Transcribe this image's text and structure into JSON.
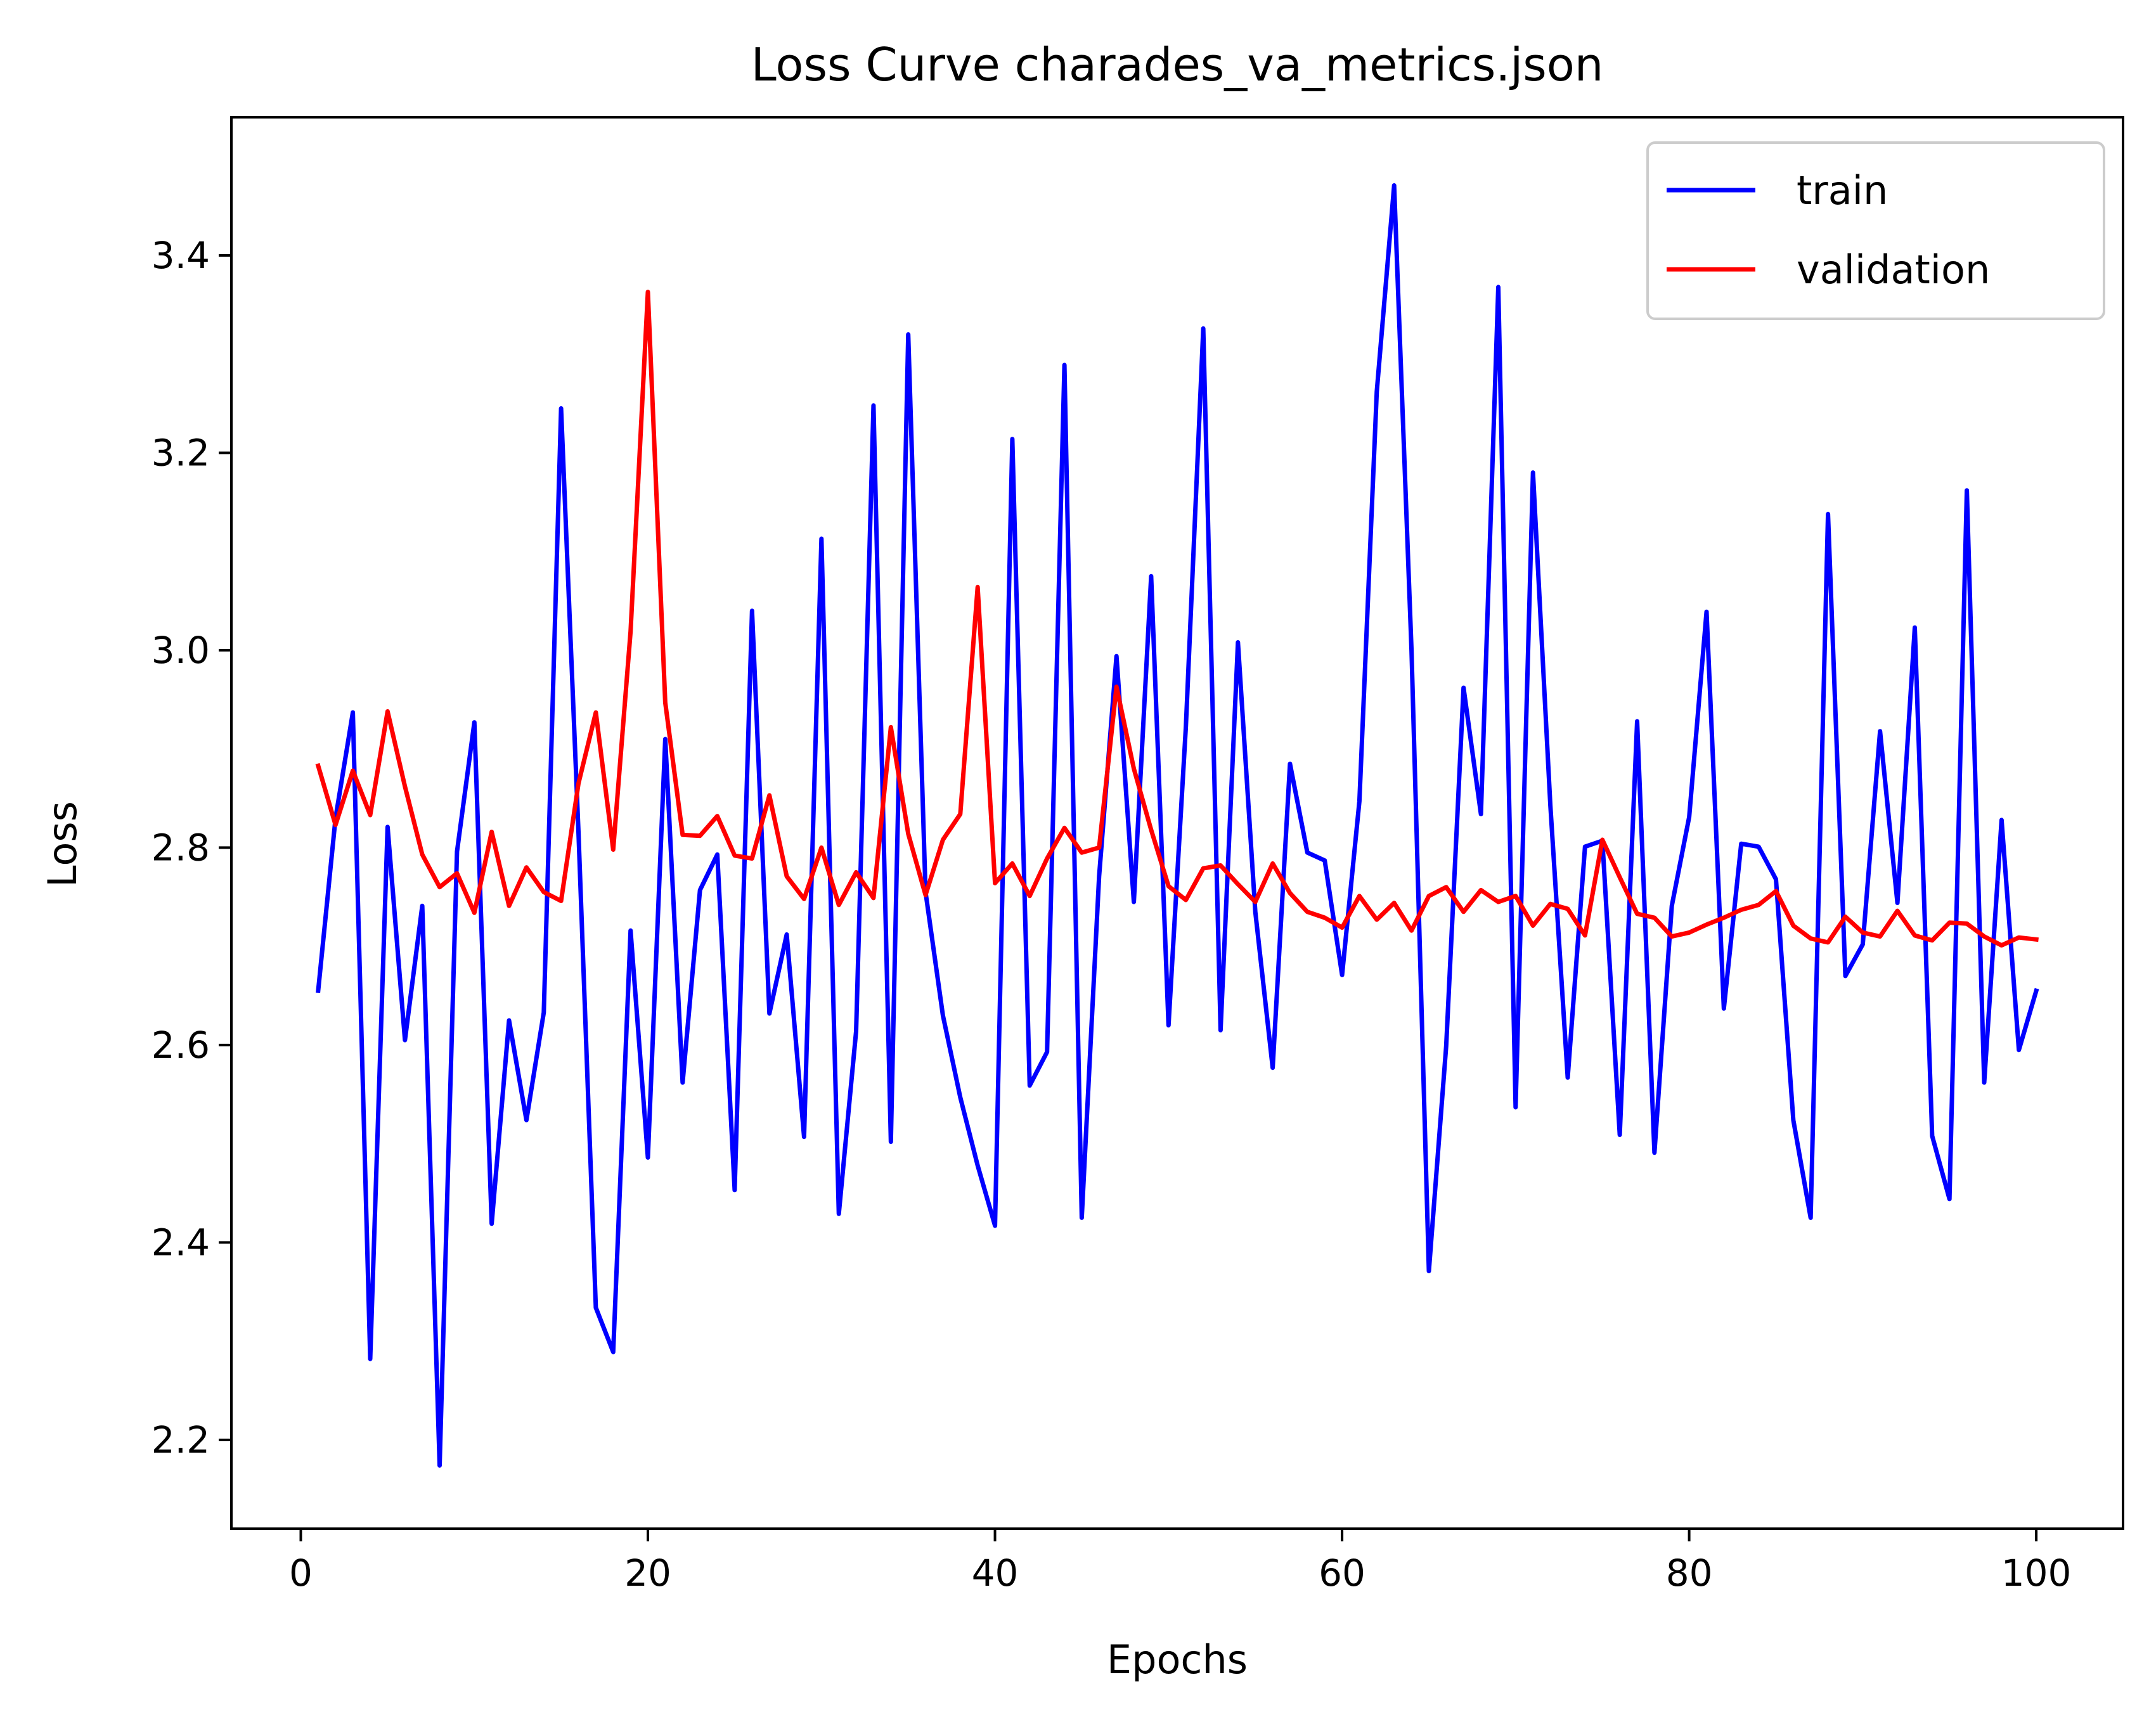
{
  "chart_data": {
    "type": "line",
    "title": "Loss Curve charades_va_metrics.json",
    "xlabel": "Epochs",
    "ylabel": "Loss",
    "xlim": [
      -4,
      105
    ],
    "ylim": [
      2.11,
      3.54
    ],
    "xticks": [
      0,
      20,
      40,
      60,
      80,
      100
    ],
    "yticks": [
      2.2,
      2.4,
      2.6,
      2.8,
      3.0,
      3.2,
      3.4
    ],
    "grid": false,
    "legend": "top-right",
    "x": [
      1,
      2,
      3,
      4,
      5,
      6,
      7,
      8,
      9,
      10,
      11,
      12,
      13,
      14,
      15,
      16,
      17,
      18,
      19,
      20,
      21,
      22,
      23,
      24,
      25,
      26,
      27,
      28,
      29,
      30,
      31,
      32,
      33,
      34,
      35,
      36,
      37,
      38,
      39,
      40,
      41,
      42,
      43,
      44,
      45,
      46,
      47,
      48,
      49,
      50,
      51,
      52,
      53,
      54,
      55,
      56,
      57,
      58,
      59,
      60,
      61,
      62,
      63,
      64,
      65,
      66,
      67,
      68,
      69,
      70,
      71,
      72,
      73,
      74,
      75,
      76,
      77,
      78,
      79,
      80,
      81,
      82,
      83,
      84,
      85,
      86,
      87,
      88,
      89,
      90,
      91,
      92,
      93,
      94,
      95,
      96,
      97,
      98,
      99,
      100
    ],
    "series": [
      {
        "name": "train",
        "color": "#0000ff",
        "values": [
          2.655,
          2.83,
          2.937,
          2.282,
          2.821,
          2.605,
          2.741,
          2.174,
          2.796,
          2.927,
          2.419,
          2.625,
          2.524,
          2.633,
          3.245,
          2.816,
          2.334,
          2.289,
          2.716,
          2.486,
          2.91,
          2.562,
          2.757,
          2.793,
          2.453,
          3.04,
          2.632,
          2.712,
          2.507,
          3.113,
          2.429,
          2.614,
          3.248,
          2.502,
          3.32,
          2.755,
          2.63,
          2.547,
          2.478,
          2.417,
          3.214,
          2.559,
          2.593,
          3.289,
          2.425,
          2.771,
          2.994,
          2.745,
          3.075,
          2.62,
          2.923,
          3.326,
          2.615,
          3.008,
          2.735,
          2.577,
          2.885,
          2.795,
          2.787,
          2.671,
          2.847,
          3.262,
          3.471,
          3.0,
          2.371,
          2.599,
          2.962,
          2.834,
          3.368,
          2.537,
          3.18,
          2.843,
          2.567,
          2.801,
          2.807,
          2.509,
          2.928,
          2.491,
          2.741,
          2.831,
          3.039,
          2.637,
          2.804,
          2.801,
          2.768,
          2.524,
          2.425,
          3.138,
          2.67,
          2.702,
          2.918,
          2.744,
          3.023,
          2.508,
          2.444,
          3.162,
          2.562,
          2.828,
          2.595,
          2.655
        ]
      },
      {
        "name": "validation",
        "color": "#ff0000",
        "values": [
          2.883,
          2.823,
          2.878,
          2.833,
          2.938,
          2.862,
          2.793,
          2.76,
          2.774,
          2.734,
          2.816,
          2.741,
          2.78,
          2.755,
          2.746,
          2.865,
          2.937,
          2.798,
          3.019,
          3.363,
          2.947,
          2.813,
          2.812,
          2.832,
          2.792,
          2.789,
          2.853,
          2.771,
          2.748,
          2.8,
          2.742,
          2.775,
          2.749,
          2.922,
          2.814,
          2.752,
          2.808,
          2.834,
          3.064,
          2.764,
          2.784,
          2.751,
          2.789,
          2.82,
          2.795,
          2.8,
          2.963,
          2.88,
          2.818,
          2.761,
          2.747,
          2.779,
          2.782,
          2.763,
          2.745,
          2.784,
          2.754,
          2.735,
          2.729,
          2.719,
          2.751,
          2.727,
          2.744,
          2.716,
          2.751,
          2.76,
          2.735,
          2.757,
          2.745,
          2.751,
          2.721,
          2.743,
          2.738,
          2.711,
          2.808,
          2.77,
          2.733,
          2.729,
          2.71,
          2.714,
          2.722,
          2.729,
          2.737,
          2.742,
          2.756,
          2.721,
          2.708,
          2.704,
          2.73,
          2.714,
          2.71,
          2.736,
          2.711,
          2.706,
          2.724,
          2.723,
          2.71,
          2.701,
          2.709,
          2.707
        ]
      }
    ]
  }
}
